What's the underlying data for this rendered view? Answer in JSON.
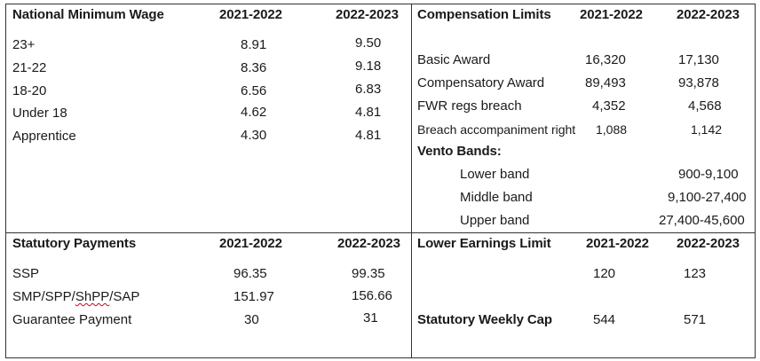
{
  "nmw": {
    "title": "National Minimum Wage",
    "col1": "2021-2022",
    "col2": "2022-2023",
    "rows": [
      {
        "label": "23+",
        "v1": "8.91",
        "v2": "9.50"
      },
      {
        "label": "21-22",
        "v1": "8.36",
        "v2": "9.18"
      },
      {
        "label": "18-20",
        "v1": "6.56",
        "v2": "6.83"
      },
      {
        "label": "Under 18",
        "v1": "4.62",
        "v2": "4.81"
      },
      {
        "label": "Apprentice",
        "v1": "4.30",
        "v2": "4.81"
      }
    ]
  },
  "comp": {
    "title": "Compensation Limits",
    "col1": "2021-2022",
    "col2": "2022-2023",
    "rows": [
      {
        "label": "Basic Award",
        "v1": "16,320",
        "v2": "17,130"
      },
      {
        "label": "Compensatory Award",
        "v1": "89,493",
        "v2": "93,878"
      },
      {
        "label": "FWR regs breach",
        "v1": "4,352",
        "v2": "4,568"
      },
      {
        "label": "Breach accompaniment right",
        "v1": "1,088",
        "v2": "1,142"
      }
    ],
    "vento_title": "Vento Bands:",
    "vento": [
      {
        "label": "Lower band",
        "value": "900-9,100"
      },
      {
        "label": "Middle band",
        "value": "9,100-27,400"
      },
      {
        "label": "Upper band",
        "value": "27,400-45,600"
      }
    ]
  },
  "stat": {
    "title": "Statutory Payments",
    "col1": "2021-2022",
    "col2": "2022-2023",
    "rows": [
      {
        "label": "SSP",
        "v1": "96.35",
        "v2": "99.35"
      },
      {
        "label_a": "SMP/SPP/",
        "label_b": "ShPP",
        "label_c": "/SAP",
        "v1": "151.97",
        "v2": "156.66"
      },
      {
        "label": "Guarantee Payment",
        "v1": "30",
        "v2": "31"
      }
    ]
  },
  "lel": {
    "title": "Lower Earnings Limit",
    "col1": "2021-2022",
    "col2": "2022-2023",
    "v1": "120",
    "v2": "123",
    "cap_label": "Statutory Weekly Cap",
    "cap_v1": "544",
    "cap_v2": "571"
  }
}
